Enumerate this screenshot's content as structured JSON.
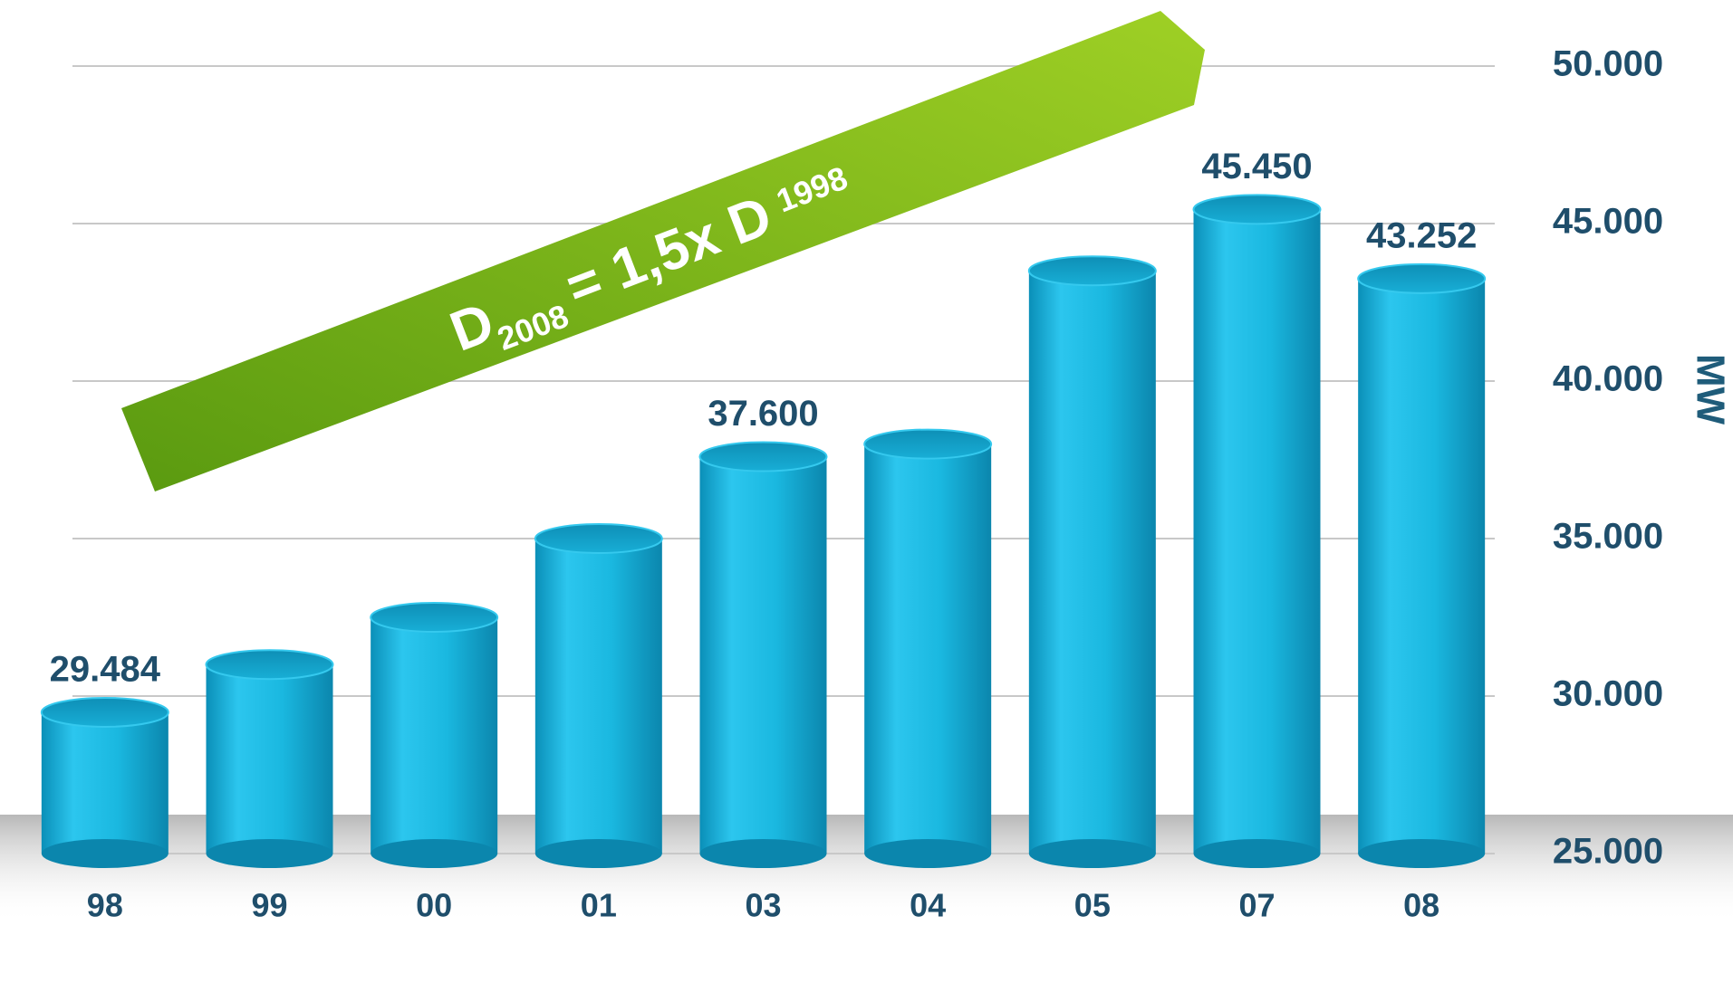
{
  "chart_data": {
    "type": "bar",
    "categories": [
      "98",
      "99",
      "00",
      "01",
      "03",
      "04",
      "05",
      "07",
      "08"
    ],
    "values": [
      29484,
      31000,
      32500,
      35000,
      37600,
      38000,
      43500,
      45450,
      43252
    ],
    "value_labels": [
      "29.484",
      null,
      null,
      null,
      "37.600",
      null,
      null,
      "45.450",
      "43.252"
    ],
    "color": "#1ab8e0",
    "ylim": [
      25000,
      50000
    ],
    "yticks": [
      {
        "value": 25000,
        "label": "25.000"
      },
      {
        "value": 30000,
        "label": "30.000"
      },
      {
        "value": 35000,
        "label": "35.000"
      },
      {
        "value": 40000,
        "label": "40.000"
      },
      {
        "value": 45000,
        "label": "45.000"
      },
      {
        "value": 50000,
        "label": "50.000"
      }
    ],
    "ylabel": "MW",
    "grid": true,
    "annotation": {
      "d1": "D",
      "sub1": "2008",
      "middle": "= 1,5x D",
      "sub2": "1998"
    }
  }
}
